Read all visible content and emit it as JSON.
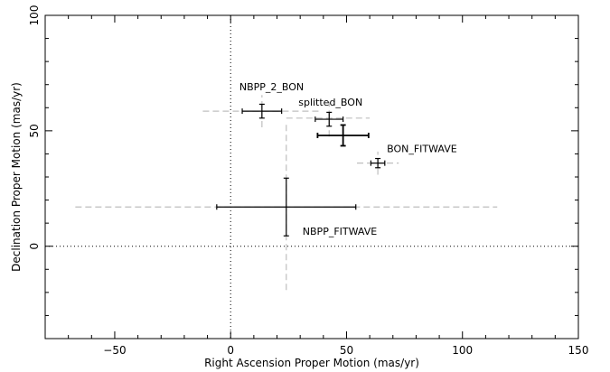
{
  "chart_data": {
    "type": "scatter",
    "xlabel": "Right Ascension Proper Motion (mas/yr)",
    "ylabel": "Declination Proper Motion (mas/yr)",
    "xlim": [
      -80,
      150
    ],
    "ylim": [
      -40,
      100
    ],
    "xticks": [
      -50,
      0,
      50,
      100,
      150
    ],
    "yticks": [
      0,
      50,
      100
    ],
    "grid": false,
    "zero_lines": "dotted",
    "points": [
      {
        "label": "NBPP_2_BON",
        "x": 13.5,
        "y": 58.5,
        "xerr": 8.5,
        "yerr": 3.0,
        "xerr_outer": 25.5,
        "yerr_outer": 7.0
      },
      {
        "label": "splitted_BON",
        "x": 42.5,
        "y": 55.0,
        "xerr": 6.0,
        "yerr": 3.0,
        "xerr_outer": 0,
        "yerr_outer": 7.5
      },
      {
        "label": "",
        "x": 48.5,
        "y": 48.0,
        "xerr": 11.0,
        "yerr": 4.5,
        "xerr_outer": 0,
        "yerr_outer": 0
      },
      {
        "label": "BON_FITWAVE",
        "x": 63.5,
        "y": 36.0,
        "xerr": 3.0,
        "yerr": 2.0,
        "xerr_outer": 9.0,
        "yerr_outer": 5.0
      },
      {
        "label": "NBPP_FITWAVE",
        "x": 24.0,
        "y": 17.0,
        "xerr": 30.0,
        "yerr": 12.5,
        "xerr_outer": 91.0,
        "yerr_outer": 36.0
      }
    ],
    "dashed_connector": {
      "x": [
        24.0,
        60.0
      ],
      "y": [
        55.5,
        55.5
      ]
    }
  },
  "colors": {
    "error_bar": "#000000",
    "systematic_error": "#bfbfbf",
    "axes": "#000000"
  }
}
